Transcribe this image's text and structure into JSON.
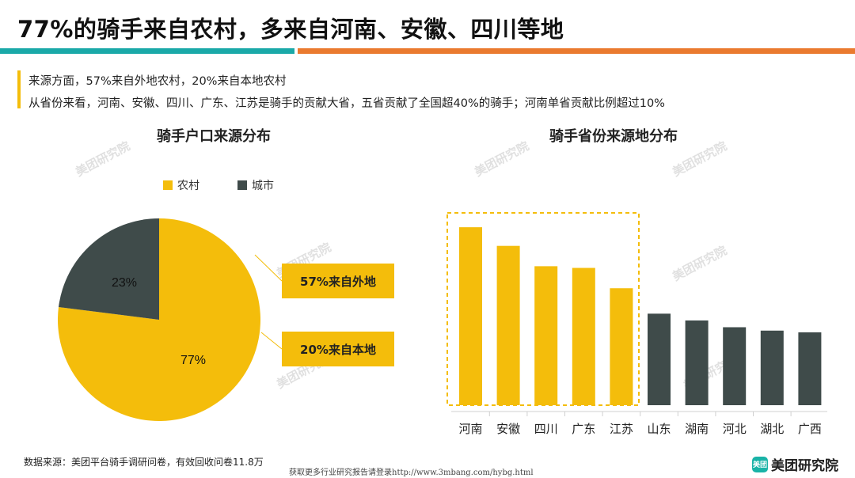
{
  "title": "77%的骑手来自农村，多来自河南、安徽、四川等地",
  "summary": {
    "line1": "来源方面，57%来自外地农村，20%来自本地农村",
    "line2": "从省份来看，河南、安徽、四川、广东、江苏是骑手的贡献大省，五省贡献了全国超40%的骑手；河南单省贡献比例超过10%"
  },
  "callouts": [
    "57%来自外地",
    "20%来自本地"
  ],
  "watermark_text": "美团研究院",
  "source": "数据来源：美团平台骑手调研问卷，有效回收问卷11.8万",
  "footer_url": "获取更多行业研究报告请登录http://www.3mbang.com/hybg.html",
  "brand": {
    "badge": "美团",
    "name": "美团研究院"
  },
  "colors": {
    "rural": "#f4bd0b",
    "city": "#3f4b4a",
    "teal": "#1aa9a8",
    "orange": "#ea7a2f"
  },
  "chart_data": [
    {
      "type": "pie",
      "title": "骑手户口来源分布",
      "legend_position": "top",
      "slices": [
        {
          "name": "农村",
          "value": 77,
          "label": "77%",
          "color": "#f4bd0b"
        },
        {
          "name": "城市",
          "value": 23,
          "label": "23%",
          "color": "#3f4b4a"
        }
      ]
    },
    {
      "type": "bar",
      "title": "骑手省份来源地分布",
      "categories": [
        "河南",
        "安徽",
        "四川",
        "广东",
        "江苏",
        "山东",
        "湖南",
        "河北",
        "湖北",
        "广西"
      ],
      "values": [
        10.5,
        9.4,
        8.2,
        8.1,
        6.9,
        5.4,
        5.0,
        4.6,
        4.4,
        4.3
      ],
      "highlight_count": 5,
      "highlight_color": "#f4bd0b",
      "other_color": "#3f4b4a",
      "ylim": [
        0,
        12
      ],
      "grid": false
    }
  ]
}
